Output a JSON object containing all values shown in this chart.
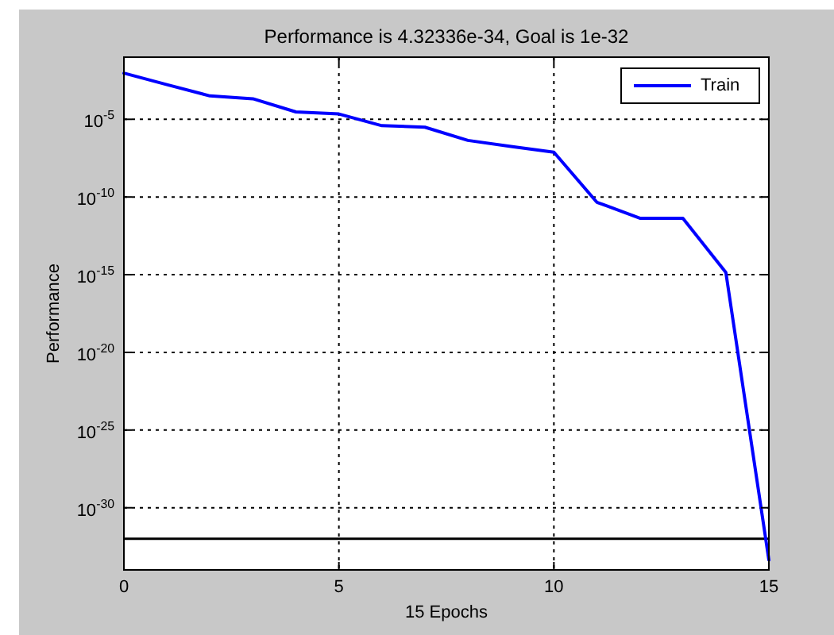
{
  "chart_data": {
    "type": "line",
    "title": "Performance is 4.32336e-34, Goal is 1e-32",
    "xlabel": "15 Epochs",
    "ylabel": "Performance",
    "x": [
      0,
      1,
      2,
      3,
      4,
      5,
      6,
      7,
      8,
      9,
      10,
      11,
      12,
      13,
      14,
      15
    ],
    "series": [
      {
        "name": "Train",
        "color": "#0000ff",
        "values": [
          0.0093,
          0.0017,
          0.00032,
          0.00021,
          3e-05,
          2.2e-05,
          3.9e-06,
          3.1e-06,
          4.4e-07,
          1.8e-07,
          7.6e-08,
          4.6e-11,
          4.3e-12,
          4.3e-12,
          1.4e-15,
          4.32336e-34
        ]
      }
    ],
    "xlim": [
      0,
      15
    ],
    "xticks": [
      0,
      5,
      10,
      15
    ],
    "ylim": [
      1e-34,
      0.1
    ],
    "yticks": [
      {
        "value": 1e-05,
        "label": "10$^{-5}$"
      },
      {
        "value": 1e-10,
        "label": "10$^{-10}$"
      },
      {
        "value": 1e-15,
        "label": "10$^{-15}$"
      },
      {
        "value": 1e-20,
        "label": "10$^{-20}$"
      },
      {
        "value": 1e-25,
        "label": "10$^{-25}$"
      },
      {
        "value": 1e-30,
        "label": "10$^{-30}$"
      }
    ],
    "log": "y",
    "grid": true,
    "legend": "top right",
    "ref_lines": [
      {
        "axis": "y",
        "value": 1e-32,
        "color": "#000000"
      }
    ]
  }
}
